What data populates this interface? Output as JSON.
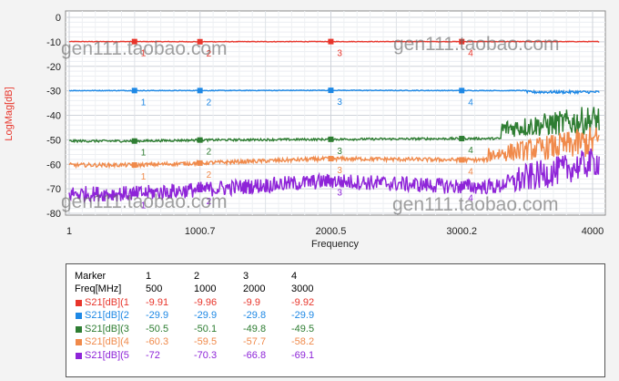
{
  "chart_data": {
    "type": "line",
    "xlabel": "Frequency",
    "ylabel": "LogMag[dB]",
    "xlim": [
      1,
      4100
    ],
    "ylim": [
      -80,
      0
    ],
    "x_ticks": [
      {
        "value": 1,
        "label": "1"
      },
      {
        "value": 1000.7,
        "label": "1000.7"
      },
      {
        "value": 2000.5,
        "label": "2000.5"
      },
      {
        "value": 3000.2,
        "label": "3000.2"
      },
      {
        "value": 4000,
        "label": "4000"
      }
    ],
    "y_ticks": [
      0,
      -10,
      -20,
      -30,
      -40,
      -50,
      -60,
      -70,
      -80
    ],
    "grid": true,
    "watermark": "gen111.taobao.com",
    "markers": [
      "1",
      "2",
      "3",
      "4"
    ],
    "marker_freqs": [
      500,
      1000,
      2000,
      3000
    ],
    "series": [
      {
        "name": "S21[dB](1)",
        "color": "#e8352b",
        "values": [
          -9.91,
          -9.96,
          -9.9,
          -9.92
        ]
      },
      {
        "name": "S21[dB](2)",
        "color": "#1e88e5",
        "values": [
          -29.9,
          -29.9,
          -29.8,
          -29.9
        ]
      },
      {
        "name": "S21[dB](3)",
        "color": "#2e7d32",
        "values": [
          -50.5,
          -50.1,
          -49.8,
          -49.5
        ]
      },
      {
        "name": "S21[dB](4)",
        "color": "#f08a4b",
        "values": [
          -60.3,
          -59.5,
          -57.7,
          -58.2
        ]
      },
      {
        "name": "S21[dB](5)",
        "color": "#8e24d8",
        "values": [
          -72,
          -70.3,
          -66.8,
          -69.1
        ]
      }
    ]
  },
  "table": {
    "header_label": "Marker",
    "freq_label": "Freq[MHz]",
    "marker_ids": [
      "1",
      "2",
      "3",
      "4"
    ],
    "freqs": [
      "500",
      "1000",
      "2000",
      "3000"
    ],
    "rows": [
      {
        "name": "S21[dB](1",
        "color": "#e8352b",
        "values": [
          "-9.91",
          "-9.96",
          "-9.9",
          "-9.92"
        ]
      },
      {
        "name": "S21[dB](2",
        "color": "#1e88e5",
        "values": [
          "-29.9",
          "-29.9",
          "-29.8",
          "-29.9"
        ]
      },
      {
        "name": "S21[dB](3",
        "color": "#2e7d32",
        "values": [
          "-50.5",
          "-50.1",
          "-49.8",
          "-49.5"
        ]
      },
      {
        "name": "S21[dB](4",
        "color": "#f08a4b",
        "values": [
          "-60.3",
          "-59.5",
          "-57.7",
          "-58.2"
        ]
      },
      {
        "name": "S21[dB](5",
        "color": "#8e24d8",
        "values": [
          "-72",
          "-70.3",
          "-66.8",
          "-69.1"
        ]
      }
    ]
  }
}
